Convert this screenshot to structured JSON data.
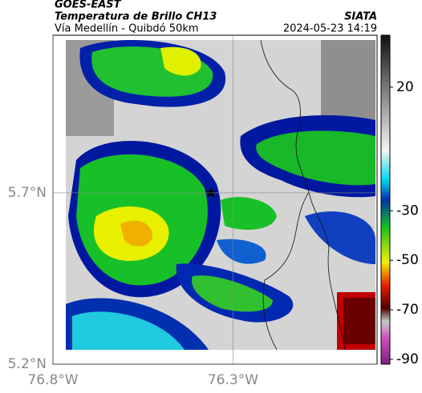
{
  "header": {
    "satellite": "GOES-EAST",
    "product": "Temperatura de Brillo CH13",
    "region": "Vía Medellín - Quibdó 50km",
    "source": "SIATA",
    "timestamp": "2024-05-23 14:19"
  },
  "map": {
    "latlim": [
      5.2,
      6.16
    ],
    "lonlim": [
      -76.8,
      -75.9
    ],
    "latticks": [
      {
        "value": 5.2,
        "label": "5.2°N"
      },
      {
        "value": 5.7,
        "label": "5.7°N"
      }
    ],
    "lonticks": [
      {
        "value": -76.8,
        "label": "76.8°W"
      },
      {
        "value": -76.3,
        "label": "76.3°W"
      }
    ]
  },
  "colorbar": {
    "lim": [
      -92,
      41
    ],
    "ticks": [
      20,
      -30,
      -50,
      -70,
      -90
    ]
  }
}
